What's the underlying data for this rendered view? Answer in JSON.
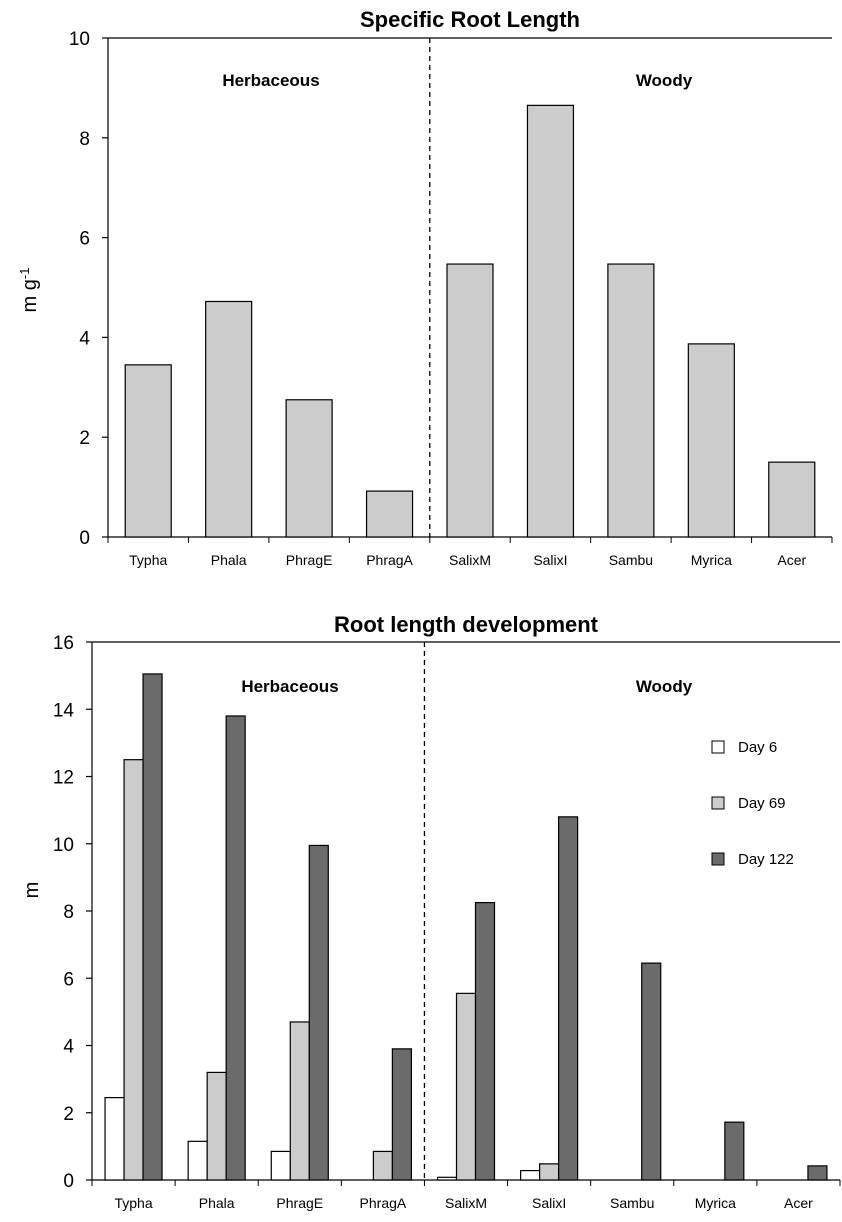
{
  "chart_data": [
    {
      "type": "bar",
      "title": "Specific Root Length",
      "ylabel": "m g",
      "ylabel_superscript": "-1",
      "ylim": [
        0,
        10
      ],
      "yticks": [
        "0",
        "2",
        "4",
        "6",
        "8",
        "10"
      ],
      "categories": [
        "Typha",
        "Phala",
        "PhragE",
        "PhragA",
        "SalixM",
        "SalixI",
        "Sambu",
        "Myrica",
        "Acer"
      ],
      "series": [
        {
          "values": [
            3.45,
            4.72,
            2.75,
            0.92,
            5.47,
            8.65,
            5.47,
            3.87,
            1.5
          ]
        }
      ],
      "colors": [
        "#cccccc"
      ],
      "groups": [
        {
          "label": "Herbaceous"
        },
        {
          "label": "Woody"
        }
      ],
      "divider_after_index": 3,
      "grid": false
    },
    {
      "type": "bar",
      "title": "Root length development",
      "ylabel": "m",
      "ylim": [
        0,
        16
      ],
      "yticks": [
        "0",
        "2",
        "4",
        "6",
        "8",
        "10",
        "12",
        "14",
        "16"
      ],
      "categories": [
        "Typha",
        "Phala",
        "PhragE",
        "PhragA",
        "SalixM",
        "SalixI",
        "Sambu",
        "Myrica",
        "Acer"
      ],
      "series": [
        {
          "name": "Day 6",
          "values": [
            2.45,
            1.15,
            0.85,
            0,
            0.08,
            0.28,
            0,
            0,
            0
          ]
        },
        {
          "name": "Day 69",
          "values": [
            12.5,
            3.2,
            4.7,
            0.85,
            5.55,
            0.48,
            0,
            0,
            0
          ]
        },
        {
          "name": "Day 122",
          "values": [
            15.05,
            13.8,
            9.95,
            3.9,
            8.25,
            10.8,
            6.45,
            1.72,
            0.42
          ]
        }
      ],
      "colors": [
        "#ffffff",
        "#cccccc",
        "#6b6b6b"
      ],
      "groups": [
        {
          "label": "Herbaceous"
        },
        {
          "label": "Woody"
        }
      ],
      "divider_after_index": 3,
      "legend_position": "right",
      "grid": false
    }
  ]
}
